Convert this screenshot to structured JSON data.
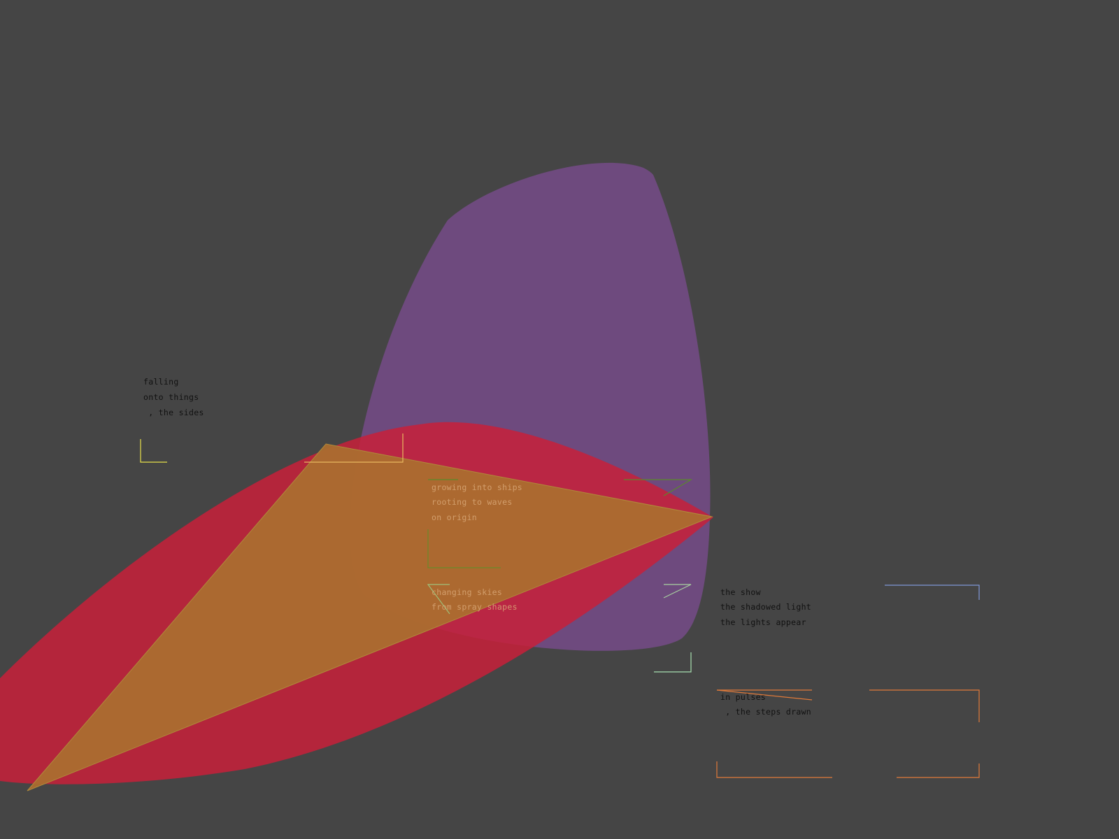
{
  "colors": {
    "background": "#454545",
    "purple_shape": "#6e4a7e",
    "red_shape": "#c8203a",
    "orange_triangle": "#ab6d2f"
  },
  "poems": {
    "block1": [
      "falling",
      "onto things",
      " , the sides"
    ],
    "block2": [
      "growing into ships",
      "rooting to waves",
      "on origin"
    ],
    "block3": [
      "changing skies",
      "from spray shapes"
    ],
    "block4": [
      "the show",
      "the shadowed light",
      "the lights appear"
    ],
    "block5": [
      "in pulses",
      " , the steps drawn"
    ]
  }
}
